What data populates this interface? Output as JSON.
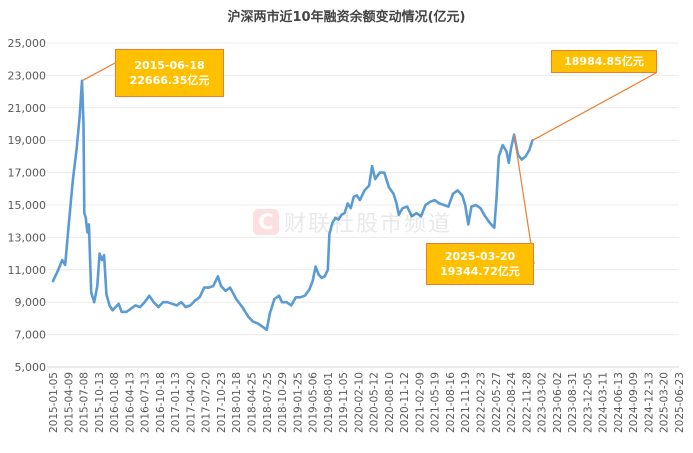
{
  "chart_data": {
    "type": "line",
    "title": "沪深两市近10年融资余额变动情况(亿元)",
    "xlabel": "",
    "ylabel": "",
    "ylim": [
      5000,
      25000
    ],
    "yticks": [
      5000,
      7000,
      9000,
      11000,
      13000,
      15000,
      17000,
      19000,
      21000,
      23000,
      25000
    ],
    "ytick_labels": [
      "5,000",
      "7,000",
      "9,000",
      "11,000",
      "13,000",
      "15,000",
      "17,000",
      "19,000",
      "21,000",
      "23,000",
      "25,000"
    ],
    "grid": true,
    "legend": null,
    "categories": [
      "2015-01-05",
      "2015-04-09",
      "2015-07-08",
      "2015-10-13",
      "2016-01-08",
      "2016-04-13",
      "2016-07-13",
      "2016-10-18",
      "2017-01-13",
      "2017-04-20",
      "2017-07-20",
      "2017-10-23",
      "2018-01-18",
      "2018-04-25",
      "2018-07-25",
      "2018-10-29",
      "2019-01-25",
      "2019-05-06",
      "2019-08-01",
      "2019-11-05",
      "2020-02-10",
      "2020-05-12",
      "2020-08-10",
      "2020-11-12",
      "2021-02-09",
      "2021-05-19",
      "2021-08-16",
      "2021-11-19",
      "2022-02-23",
      "2022-05-27",
      "2022-08-24",
      "2022-11-28",
      "2023-03-02",
      "2023-06-02",
      "2023-08-31",
      "2023-12-05",
      "2024-03-11",
      "2024-06-13",
      "2024-09-09",
      "2024-12-13",
      "2025-03-20",
      "2025-06-23"
    ],
    "series": [
      {
        "name": "融资余额",
        "color": "#5b9bd5",
        "points": [
          [
            0,
            10300
          ],
          [
            0.35,
            11000
          ],
          [
            0.6,
            11600
          ],
          [
            0.8,
            11300
          ],
          [
            1.0,
            13500
          ],
          [
            1.3,
            16500
          ],
          [
            1.55,
            18500
          ],
          [
            1.75,
            20500
          ],
          [
            1.9,
            22666.35
          ],
          [
            2.0,
            20000
          ],
          [
            2.05,
            14500
          ],
          [
            2.15,
            14200
          ],
          [
            2.25,
            13300
          ],
          [
            2.35,
            13800
          ],
          [
            2.5,
            9600
          ],
          [
            2.7,
            9000
          ],
          [
            2.9,
            10000
          ],
          [
            3.05,
            12000
          ],
          [
            3.2,
            11600
          ],
          [
            3.35,
            11900
          ],
          [
            3.5,
            9500
          ],
          [
            3.7,
            8800
          ],
          [
            3.9,
            8500
          ],
          [
            4.1,
            8700
          ],
          [
            4.3,
            8900
          ],
          [
            4.5,
            8400
          ],
          [
            4.8,
            8400
          ],
          [
            5.1,
            8600
          ],
          [
            5.4,
            8800
          ],
          [
            5.7,
            8700
          ],
          [
            6.0,
            9000
          ],
          [
            6.3,
            9400
          ],
          [
            6.6,
            9000
          ],
          [
            6.9,
            8700
          ],
          [
            7.2,
            9000
          ],
          [
            7.5,
            9000
          ],
          [
            7.8,
            8900
          ],
          [
            8.1,
            8800
          ],
          [
            8.4,
            9000
          ],
          [
            8.7,
            8700
          ],
          [
            9.0,
            8800
          ],
          [
            9.3,
            9100
          ],
          [
            9.6,
            9300
          ],
          [
            9.9,
            9900
          ],
          [
            10.2,
            9900
          ],
          [
            10.5,
            10000
          ],
          [
            10.8,
            10600
          ],
          [
            11.0,
            10000
          ],
          [
            11.3,
            9700
          ],
          [
            11.6,
            9900
          ],
          [
            12.0,
            9200
          ],
          [
            12.4,
            8700
          ],
          [
            12.8,
            8100
          ],
          [
            13.1,
            7800
          ],
          [
            13.4,
            7700
          ],
          [
            13.7,
            7500
          ],
          [
            14.0,
            7300
          ],
          [
            14.2,
            8300
          ],
          [
            14.5,
            9200
          ],
          [
            14.8,
            9400
          ],
          [
            15.0,
            9000
          ],
          [
            15.3,
            9000
          ],
          [
            15.6,
            8800
          ],
          [
            15.9,
            9300
          ],
          [
            16.2,
            9300
          ],
          [
            16.5,
            9400
          ],
          [
            16.8,
            9800
          ],
          [
            17.0,
            10300
          ],
          [
            17.2,
            11200
          ],
          [
            17.4,
            10700
          ],
          [
            17.6,
            10500
          ],
          [
            17.8,
            10600
          ],
          [
            18.0,
            11000
          ],
          [
            18.1,
            13200
          ],
          [
            18.3,
            13900
          ],
          [
            18.5,
            14200
          ],
          [
            18.7,
            14100
          ],
          [
            18.9,
            14400
          ],
          [
            19.1,
            14500
          ],
          [
            19.3,
            15100
          ],
          [
            19.5,
            14800
          ],
          [
            19.7,
            15500
          ],
          [
            19.9,
            15600
          ],
          [
            20.1,
            15300
          ],
          [
            20.4,
            15900
          ],
          [
            20.7,
            16200
          ],
          [
            20.9,
            17400
          ],
          [
            21.1,
            16600
          ],
          [
            21.4,
            17000
          ],
          [
            21.7,
            17000
          ],
          [
            22.0,
            16100
          ],
          [
            22.3,
            15700
          ],
          [
            22.5,
            15100
          ],
          [
            22.65,
            14400
          ],
          [
            22.9,
            14800
          ],
          [
            23.2,
            14900
          ],
          [
            23.5,
            14300
          ],
          [
            23.8,
            14500
          ],
          [
            24.1,
            14300
          ],
          [
            24.4,
            15000
          ],
          [
            24.7,
            15200
          ],
          [
            25.0,
            15300
          ],
          [
            25.3,
            15100
          ],
          [
            25.6,
            15000
          ],
          [
            25.9,
            14900
          ],
          [
            26.2,
            15700
          ],
          [
            26.5,
            15900
          ],
          [
            26.8,
            15600
          ],
          [
            27.0,
            15000
          ],
          [
            27.2,
            13800
          ],
          [
            27.4,
            14900
          ],
          [
            27.7,
            15000
          ],
          [
            28.0,
            14800
          ],
          [
            28.3,
            14300
          ],
          [
            28.6,
            13900
          ],
          [
            28.9,
            13600
          ],
          [
            29.05,
            15400
          ],
          [
            29.2,
            18000
          ],
          [
            29.45,
            18700
          ],
          [
            29.7,
            18300
          ],
          [
            29.85,
            17600
          ],
          [
            30.0,
            18500
          ],
          [
            30.2,
            19344.72
          ],
          [
            30.45,
            18100
          ],
          [
            30.7,
            17800
          ],
          [
            30.95,
            18000
          ],
          [
            31.2,
            18400
          ],
          [
            31.4,
            18984.85
          ]
        ]
      }
    ],
    "annotations": [
      {
        "label_date": "2015-06-18",
        "label_value": "22666.35亿元",
        "value": 22666.35
      },
      {
        "label_date": "2025-03-20",
        "label_value": "19344.72亿元",
        "value": 19344.72
      },
      {
        "label_date": "",
        "label_value": "18984.85亿元",
        "value": 18984.85
      }
    ]
  },
  "watermark": {
    "logo": "C",
    "text": "财联社股市频道"
  }
}
